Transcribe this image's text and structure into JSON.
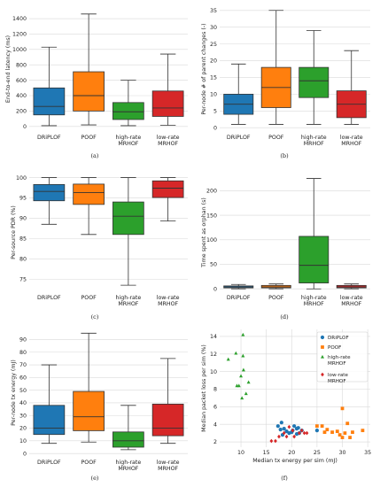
{
  "chart_data": [
    {
      "type": "box",
      "caption": "(a)",
      "ylabel": "End-to-end latency (ms)",
      "ylim": [
        -60,
        1550
      ],
      "yticks": [
        0,
        200,
        400,
        600,
        800,
        1000,
        1200,
        1400
      ],
      "categories": [
        "DRiPLOF",
        "POOF",
        "high-rate\nMRHOF",
        "low-rate\nMRHOF"
      ],
      "boxes": [
        {
          "min": 10,
          "q1": 150,
          "median": 260,
          "q3": 500,
          "max": 1030
        },
        {
          "min": 20,
          "q1": 200,
          "median": 400,
          "q3": 710,
          "max": 1460
        },
        {
          "min": 10,
          "q1": 90,
          "median": 190,
          "q3": 310,
          "max": 600
        },
        {
          "min": 15,
          "q1": 130,
          "median": 240,
          "q3": 460,
          "max": 940
        }
      ]
    },
    {
      "type": "box",
      "caption": "(b)",
      "ylabel": "Per-node # of parent changes (-)",
      "ylim": [
        -1,
        36
      ],
      "yticks": [
        0,
        5,
        10,
        15,
        20,
        25,
        30,
        35
      ],
      "categories": [
        "DRiPLOF",
        "POOF",
        "high-rate\nMRHOF",
        "low-rate\nMRHOF"
      ],
      "boxes": [
        {
          "min": 1,
          "q1": 4,
          "median": 7,
          "q3": 10,
          "max": 19
        },
        {
          "min": 1,
          "q1": 6,
          "median": 12,
          "q3": 18,
          "max": 35
        },
        {
          "min": 1,
          "q1": 9,
          "median": 14,
          "q3": 18,
          "max": 29
        },
        {
          "min": 1,
          "q1": 3,
          "median": 7,
          "q3": 11,
          "max": 23
        }
      ]
    },
    {
      "type": "box",
      "caption": "(c)",
      "ylabel": "Per-source PDR (%)",
      "ylim": [
        72,
        101
      ],
      "yticks": [
        75,
        80,
        85,
        90,
        95,
        100
      ],
      "categories": [
        "DRiPLOF",
        "POOF",
        "high-rate\nMRHOF",
        "low-rate\nMRHOF"
      ],
      "boxes": [
        {
          "min": 88.5,
          "q1": 94.3,
          "median": 96.6,
          "q3": 98.3,
          "max": 100
        },
        {
          "min": 86,
          "q1": 93.4,
          "median": 96.3,
          "q3": 98.4,
          "max": 100
        },
        {
          "min": 73.5,
          "q1": 86,
          "median": 90.5,
          "q3": 94,
          "max": 100
        },
        {
          "min": 89.3,
          "q1": 95.1,
          "median": 97.4,
          "q3": 99.2,
          "max": 100
        }
      ]
    },
    {
      "type": "box",
      "caption": "(d)",
      "ylabel": "Time spent as orphan (s)",
      "ylim": [
        -5,
        235
      ],
      "yticks": [
        0,
        50,
        100,
        150,
        200
      ],
      "categories": [
        "DRiPLOF",
        "POOF",
        "high-rate\nMRHOF",
        "low-rate\nMRHOF"
      ],
      "boxes": [
        {
          "min": 0,
          "q1": 2,
          "median": 4,
          "q3": 6,
          "max": 9
        },
        {
          "min": 0,
          "q1": 2,
          "median": 4,
          "q3": 7,
          "max": 10
        },
        {
          "min": 0,
          "q1": 12,
          "median": 48,
          "q3": 107,
          "max": 225
        },
        {
          "min": 0,
          "q1": 2,
          "median": 4,
          "q3": 7,
          "max": 10
        }
      ]
    },
    {
      "type": "box",
      "caption": "(e)",
      "ylabel": "Per-node tx energy (mJ)",
      "ylim": [
        -2,
        98
      ],
      "yticks": [
        0,
        10,
        20,
        30,
        40,
        50,
        60,
        70,
        80,
        90
      ],
      "categories": [
        "DRiPLOF",
        "POOF",
        "high-rate\nMRHOF",
        "low-rate\nMRHOF"
      ],
      "boxes": [
        {
          "min": 8,
          "q1": 15,
          "median": 20,
          "q3": 38,
          "max": 70
        },
        {
          "min": 9,
          "q1": 18,
          "median": 29,
          "q3": 49,
          "max": 95
        },
        {
          "min": 3,
          "q1": 5,
          "median": 10,
          "q3": 17,
          "max": 38
        },
        {
          "min": 8,
          "q1": 14,
          "median": 20,
          "q3": 39,
          "max": 75
        }
      ]
    },
    {
      "type": "scatter",
      "caption": "(f)",
      "xlabel": "Median tx energy per sim (mJ)",
      "ylabel": "Median packet loss per sim (%)",
      "xlim": [
        5.8,
        35.5
      ],
      "ylim": [
        1.4,
        14.8
      ],
      "xticks": [
        10,
        15,
        20,
        25,
        30,
        35
      ],
      "yticks": [
        2,
        4,
        6,
        8,
        10,
        12,
        14
      ],
      "legend_position": "top-right",
      "series": [
        {
          "name": "DRiPLOF",
          "marker": "circle",
          "color": "#1f77b4",
          "points": [
            [
              17.3,
              3.8
            ],
            [
              18,
              4.2
            ],
            [
              18.5,
              3.5
            ],
            [
              19,
              3.2
            ],
            [
              20,
              3.1
            ],
            [
              20.5,
              3.8
            ],
            [
              21,
              3.5
            ],
            [
              21.5,
              3
            ],
            [
              22,
              3.3
            ],
            [
              18.2,
              2.8
            ],
            [
              19.5,
              3
            ],
            [
              21,
              2.9
            ],
            [
              17.8,
              3.4
            ],
            [
              20.2,
              3.3
            ],
            [
              21.3,
              3.6
            ],
            [
              25,
              3.3
            ]
          ]
        },
        {
          "name": "POOF",
          "marker": "square",
          "color": "#ff7f0e",
          "points": [
            [
              25,
              3.8
            ],
            [
              26,
              3.8
            ],
            [
              27,
              3.4
            ],
            [
              28,
              3.1
            ],
            [
              29,
              3.2
            ],
            [
              30,
              5.8
            ],
            [
              31,
              4.1
            ],
            [
              30.5,
              3
            ],
            [
              32,
              3.1
            ],
            [
              34,
              3.3
            ],
            [
              30,
              2.5
            ],
            [
              31.5,
              2.5
            ],
            [
              29.5,
              2.8
            ],
            [
              26.5,
              3.1
            ]
          ]
        },
        {
          "name": "high-rate\nMRHOF",
          "marker": "triangle",
          "color": "#2ca02c",
          "points": [
            [
              7.5,
              11.4
            ],
            [
              9,
              12.1
            ],
            [
              9.2,
              8.4
            ],
            [
              9.6,
              8.4
            ],
            [
              10.4,
              14.2
            ],
            [
              10.4,
              11.8
            ],
            [
              10.2,
              7
            ],
            [
              10.5,
              10.2
            ],
            [
              11,
              7.5
            ],
            [
              11.5,
              8.8
            ],
            [
              10,
              9.5
            ]
          ]
        },
        {
          "name": "low-rate\nMRHOF",
          "marker": "diamond",
          "color": "#d62728",
          "points": [
            [
              16,
              2.1
            ],
            [
              16.8,
              2.1
            ],
            [
              17.5,
              2.6
            ],
            [
              18.5,
              3
            ],
            [
              19.5,
              3.7
            ],
            [
              20.5,
              2.6
            ],
            [
              21.5,
              3
            ],
            [
              22.5,
              3
            ],
            [
              23,
              3
            ],
            [
              19,
              2.6
            ],
            [
              20.2,
              3.3
            ],
            [
              22,
              3.3
            ]
          ]
        }
      ]
    }
  ]
}
